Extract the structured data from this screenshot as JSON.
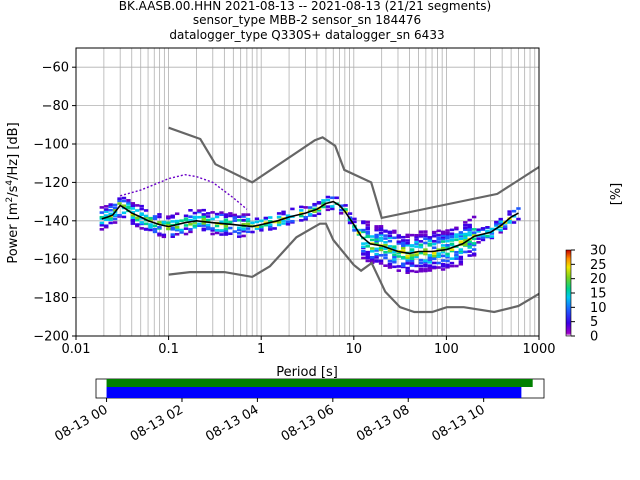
{
  "header": {
    "line1": "BK.AASB.00.HHN   2021-08-13 -- 2021-08-13  (21/21 segments)",
    "line2": "sensor_type MBB-2 sensor_sn 184476",
    "line3": "datalogger_type Q330S+ datalogger_sn 6433"
  },
  "colorbar": {
    "label": "[%]",
    "ticks": [
      "0",
      "5",
      "10",
      "15",
      "20",
      "25",
      "30"
    ]
  },
  "timeline": {
    "ticks": [
      "08-13 00",
      "08-13 02",
      "08-13 04",
      "08-13 06",
      "08-13 08",
      "08-13 10"
    ]
  },
  "chart_data": [
    {
      "type": "line",
      "xlabel": "Period [s]",
      "ylabel": "Power [m²/s⁴/Hz] [dB]",
      "xscale": "log",
      "xlim": [
        0.01,
        1000
      ],
      "ylim": [
        -200,
        -50
      ],
      "xticks": [
        "0.01",
        "0.1",
        "1",
        "10",
        "100",
        "1000"
      ],
      "yticks": [
        "−60",
        "−80",
        "−100",
        "−120",
        "−140",
        "−160",
        "−180",
        "−200"
      ],
      "grid": true,
      "series": [
        {
          "role": "mean",
          "color": "#000000",
          "x": [
            0.019,
            0.022,
            0.025,
            0.03,
            0.035,
            0.04,
            0.05,
            0.06,
            0.08,
            0.1,
            0.15,
            0.2,
            0.3,
            0.5,
            0.8,
            1.0,
            1.5,
            2,
            3,
            4,
            5,
            6,
            7,
            8,
            10,
            12,
            15,
            20,
            30,
            40,
            50,
            70,
            100,
            150,
            200,
            300,
            400,
            500,
            600
          ],
          "y": [
            -139,
            -138,
            -137,
            -132,
            -134,
            -136,
            -138,
            -140,
            -142,
            -143,
            -141,
            -140,
            -141,
            -142,
            -143,
            -142,
            -140,
            -138,
            -136,
            -134,
            -131,
            -130,
            -132,
            -135,
            -142,
            -148,
            -152,
            -153,
            -156,
            -157,
            -156,
            -156,
            -155,
            -152,
            -148,
            -146,
            -142,
            -138,
            -136
          ]
        },
        {
          "role": "noise model (upper)",
          "color": "#666666",
          "x": [
            0.1,
            0.22,
            0.32,
            0.8,
            3.8,
            4.6,
            6.3,
            7.9,
            15.4,
            20,
            354.8,
            1000
          ],
          "y": [
            -91.5,
            -97.4,
            -110.5,
            -120.0,
            -98.0,
            -96.5,
            -101.0,
            -113.5,
            -120.0,
            -138.5,
            -126.0,
            -112.0
          ]
        },
        {
          "role": "noise model (lower)",
          "color": "#666666",
          "x": [
            0.1,
            0.17,
            0.4,
            0.8,
            1.24,
            2.4,
            4.3,
            5.0,
            6.0,
            10.0,
            12.0,
            15.6,
            21.9,
            31.6,
            45.0,
            70.0,
            101.0,
            154.0,
            328.0,
            600.0,
            1000.0
          ],
          "y": [
            -168.0,
            -166.7,
            -166.7,
            -169.2,
            -163.7,
            -148.6,
            -141.5,
            -141.5,
            -150.0,
            -163.0,
            -166.0,
            -162.0,
            -177.0,
            -185.0,
            -187.5,
            -187.5,
            -185.0,
            -185.0,
            -187.5,
            -184.4,
            -178.0
          ]
        },
        {
          "role": "probability density edge",
          "color": "#6a00c8",
          "x": [
            0.03,
            0.05,
            0.08,
            0.1,
            0.15,
            0.2,
            0.3,
            0.5,
            0.7
          ],
          "y": [
            -127,
            -124,
            -120,
            -118,
            -116,
            -117,
            -120,
            -128,
            -134
          ]
        }
      ]
    },
    {
      "type": "bar",
      "role": "data availability",
      "categories": [
        "08-13 00",
        "08-13 02",
        "08-13 04",
        "08-13 06",
        "08-13 08",
        "08-13 10"
      ],
      "series": [
        {
          "name": "available",
          "color": "#008000",
          "start_hours": 0.0,
          "end_hours": 11.3
        },
        {
          "name": "processed",
          "color": "#0000ff",
          "start_hours": 0.0,
          "end_hours": 11.0
        }
      ],
      "xlim_hours": [
        -0.28,
        11.6
      ]
    }
  ]
}
